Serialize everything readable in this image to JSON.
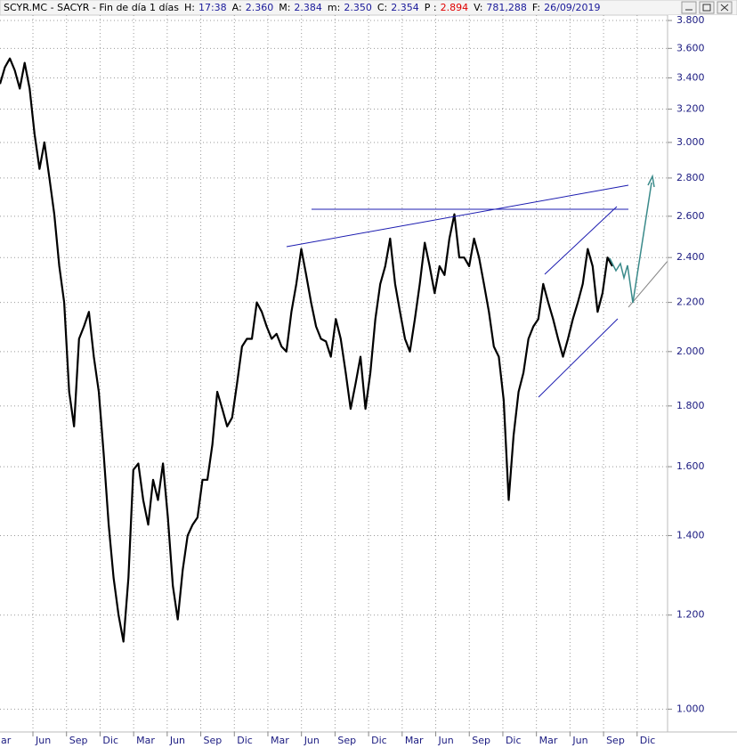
{
  "header": {
    "title": "SCYR.MC - SACYR - Fin de día 1 días",
    "fields": [
      {
        "label": "H:",
        "value": "17:38"
      },
      {
        "label": "A:",
        "value": "2.360"
      },
      {
        "label": "M:",
        "value": "2.384"
      },
      {
        "label": "m:",
        "value": "2.350"
      },
      {
        "label": "C:",
        "value": "2.354"
      },
      {
        "label": "P :",
        "value": "2.894"
      },
      {
        "label": "V:",
        "value": "781,288"
      },
      {
        "label": "F:",
        "value": "26/09/2019"
      }
    ]
  },
  "chart_data": {
    "type": "line",
    "color": "#000000",
    "log_scale": true,
    "grid": true,
    "xtick_labels": [
      "ar",
      "Jun",
      "Sep",
      "Dic",
      "Mar",
      "Jun",
      "Sep",
      "Dic",
      "Mar",
      "Jun",
      "Sep",
      "Dic",
      "Mar",
      "Jun",
      "Sep",
      "Dic",
      "Mar",
      "Jun",
      "Sep",
      "Dic"
    ],
    "values": [
      3.36,
      3.47,
      3.53,
      3.45,
      3.33,
      3.5,
      3.33,
      3.05,
      2.85,
      3.0,
      2.8,
      2.61,
      2.36,
      2.2,
      1.85,
      1.73,
      2.05,
      2.1,
      2.16,
      1.98,
      1.85,
      1.64,
      1.43,
      1.29,
      1.2,
      1.14,
      1.29,
      1.59,
      1.61,
      1.5,
      1.43,
      1.56,
      1.5,
      1.61,
      1.45,
      1.27,
      1.19,
      1.31,
      1.4,
      1.43,
      1.45,
      1.56,
      1.56,
      1.67,
      1.85,
      1.79,
      1.73,
      1.76,
      1.88,
      2.02,
      2.05,
      2.05,
      2.2,
      2.16,
      2.1,
      2.05,
      2.07,
      2.02,
      2.0,
      2.16,
      2.28,
      2.44,
      2.32,
      2.2,
      2.1,
      2.05,
      2.04,
      1.98,
      2.13,
      2.05,
      1.92,
      1.79,
      1.88,
      1.98,
      1.79,
      1.92,
      2.13,
      2.28,
      2.36,
      2.49,
      2.28,
      2.16,
      2.05,
      2.0,
      2.13,
      2.28,
      2.47,
      2.36,
      2.24,
      2.36,
      2.32,
      2.49,
      2.61,
      2.4,
      2.4,
      2.36,
      2.49,
      2.4,
      2.28,
      2.16,
      2.02,
      1.98,
      1.82,
      1.5,
      1.7,
      1.85,
      1.92,
      2.05,
      2.1,
      2.13,
      2.28,
      2.2,
      2.13,
      2.05,
      1.98,
      2.05,
      2.13,
      2.2,
      2.28,
      2.44,
      2.36,
      2.16,
      2.24,
      2.4,
      2.36
    ],
    "ylim": [
      0.96,
      3.92
    ],
    "yticks": [
      {
        "value": 1.0,
        "label": "1.000"
      },
      {
        "value": 1.2,
        "label": "1.200"
      },
      {
        "value": 1.4,
        "label": "1.400"
      },
      {
        "value": 1.6,
        "label": "1.600"
      },
      {
        "value": 1.8,
        "label": "1.800"
      },
      {
        "value": 2.0,
        "label": "2.000"
      },
      {
        "value": 2.2,
        "label": "2.200"
      },
      {
        "value": 2.4,
        "label": "2.400"
      },
      {
        "value": 2.6,
        "label": "2.600"
      },
      {
        "value": 2.8,
        "label": "2.800"
      },
      {
        "value": 3.0,
        "label": "3.000"
      },
      {
        "value": 3.2,
        "label": "3.200"
      },
      {
        "value": 3.4,
        "label": "3.400"
      },
      {
        "value": 3.6,
        "label": "3.600"
      },
      {
        "value": 3.8,
        "label": "3.800"
      }
    ]
  }
}
